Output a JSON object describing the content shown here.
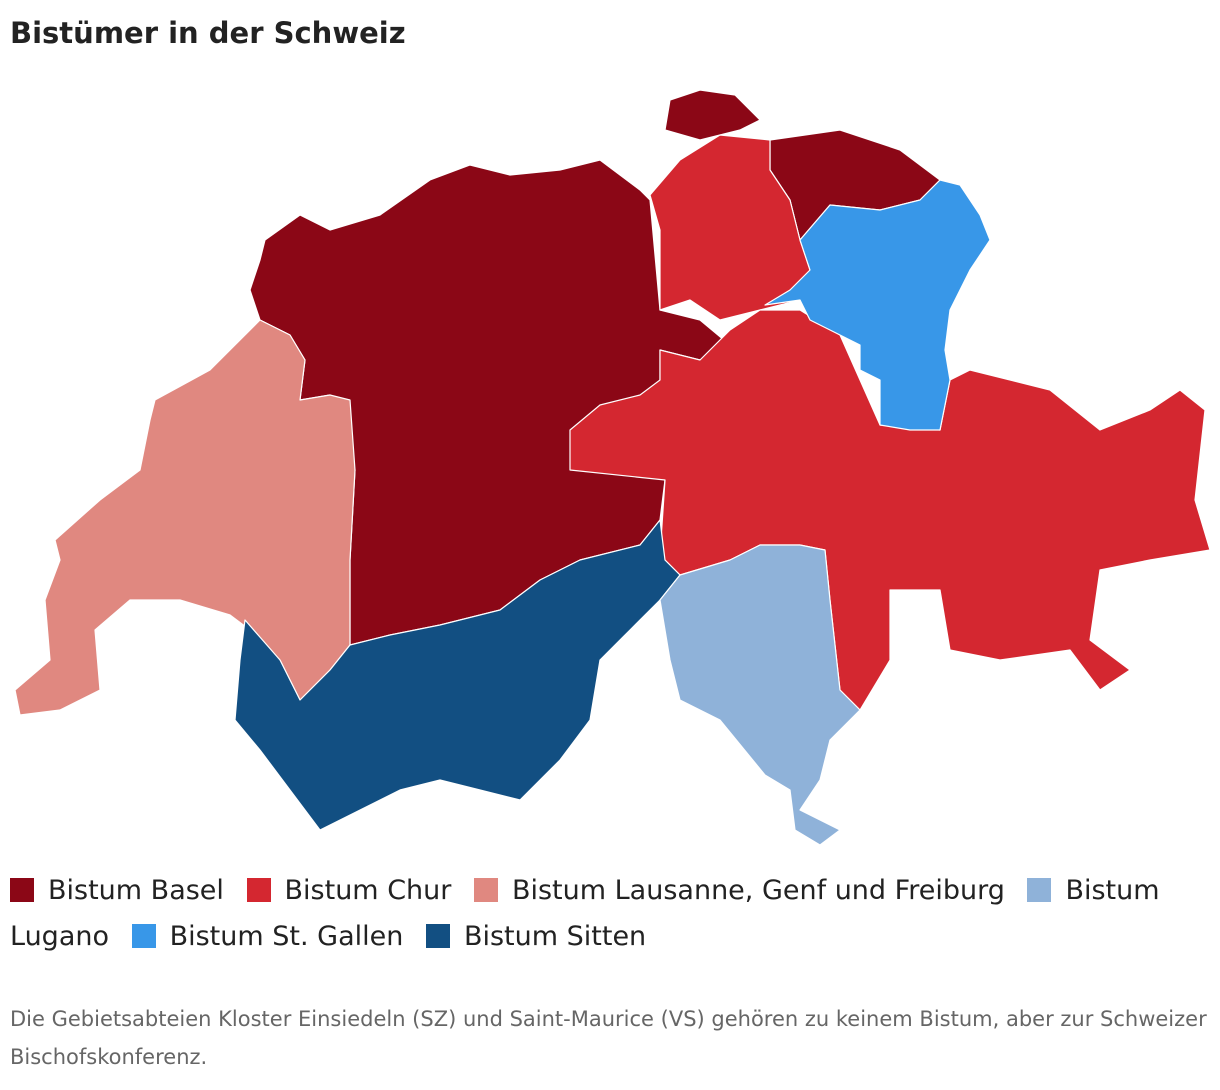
{
  "header": {
    "title": "Bistümer in der Schweiz"
  },
  "legend": [
    {
      "label": "Bistum Basel",
      "color": "#8b0716"
    },
    {
      "label": "Bistum Chur",
      "color": "#d42730"
    },
    {
      "label": "Bistum Lausanne, Genf und Freiburg",
      "color": "#e08880"
    },
    {
      "label": "Bistum Lugano",
      "color": "#8fb2d9"
    },
    {
      "label": "Bistum St. Gallen",
      "color": "#3897e8"
    },
    {
      "label": "Bistum Sitten",
      "color": "#124f82"
    }
  ],
  "note": "Die Gebietsabteien Kloster Einsiedeln (SZ) und Saint-Maurice (VS) gehören zu keinem Bistum, aber zur Schweizer Bischofskonferenz."
}
